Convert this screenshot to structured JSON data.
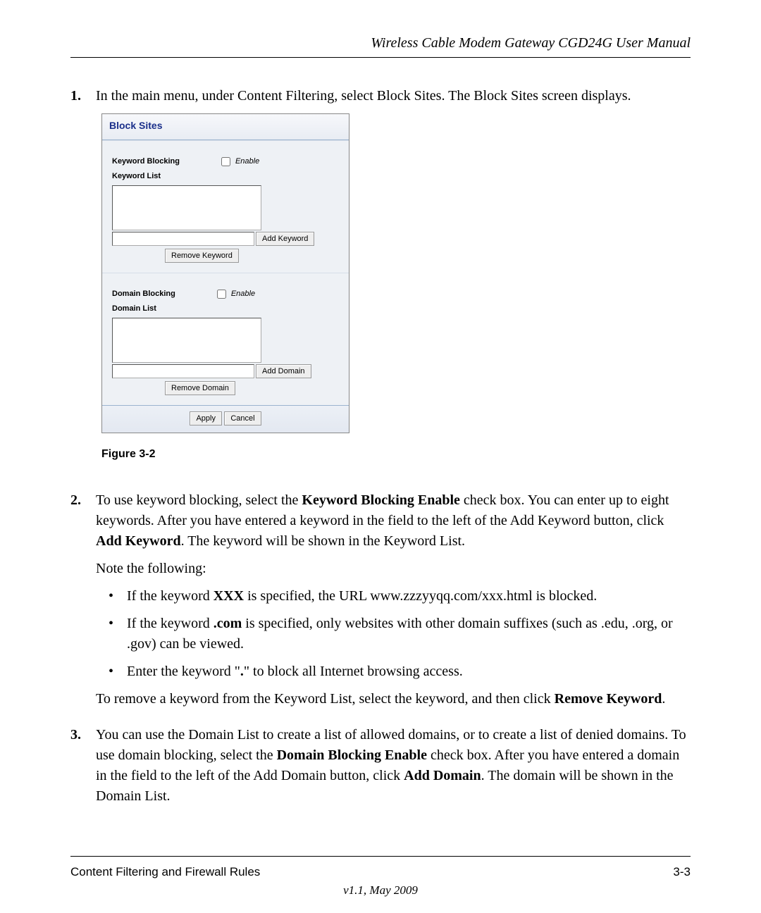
{
  "header": {
    "title": "Wireless Cable Modem Gateway CGD24G User Manual"
  },
  "steps": {
    "s1": {
      "num": "1.",
      "text": "In the main menu, under Content Filtering, select Block Sites. The Block Sites screen displays."
    },
    "s2": {
      "num": "2.",
      "p1_a": "To use keyword blocking, select the ",
      "p1_b": "Keyword Blocking Enable",
      "p1_c": " check box. You can enter up to eight keywords. After you have entered a keyword in the field to the left of the Add Keyword button, click ",
      "p1_d": "Add Keyword",
      "p1_e": ". The keyword will be shown in the Keyword List.",
      "note": "Note the following:",
      "b1_a": "If the keyword ",
      "b1_b": "XXX",
      "b1_c": " is specified, the URL www.zzzyyqq.com/xxx.html is blocked.",
      "b2_a": "If the keyword ",
      "b2_b": ".com",
      "b2_c": " is specified, only websites with other domain suffixes (such as .edu, .org, or .gov) can be viewed.",
      "b3_a": "Enter the keyword \"",
      "b3_b": ".",
      "b3_c": "\" to block all Internet browsing access.",
      "p2_a": "To remove a keyword from the Keyword List, select the keyword, and then click ",
      "p2_b": "Remove Keyword",
      "p2_c": "."
    },
    "s3": {
      "num": "3.",
      "p1_a": "You can use the Domain List to create a list of allowed domains, or to create a list of denied domains. To use domain blocking, select the ",
      "p1_b": "Domain Blocking Enable",
      "p1_c": " check box. After you have entered a domain in the field to the left of the Add Domain button, click ",
      "p1_d": "Add Domain",
      "p1_e": ". The domain will be shown in the Domain List."
    }
  },
  "panel": {
    "title": "Block Sites",
    "keyword_blocking_label": "Keyword Blocking",
    "keyword_list_label": "Keyword List",
    "domain_blocking_label": "Domain Blocking",
    "domain_list_label": "Domain List",
    "enable_label": "Enable",
    "add_keyword_btn": "Add Keyword",
    "remove_keyword_btn": "Remove Keyword",
    "add_domain_btn": "Add Domain",
    "remove_domain_btn": "Remove Domain",
    "apply_btn": "Apply",
    "cancel_btn": "Cancel"
  },
  "figure_caption": "Figure 3-2",
  "footer": {
    "left": "Content Filtering and Firewall Rules",
    "right": "3-3",
    "version": "v1.1, May 2009"
  },
  "bullet_char": "•"
}
